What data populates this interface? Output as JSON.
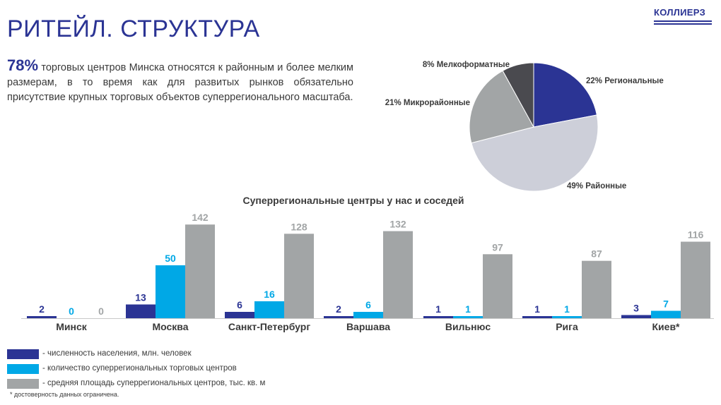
{
  "header": {
    "title": "РИТЕЙЛ. СТРУКТУРА",
    "logo_text": "КОЛЛИЕРЗ"
  },
  "intro": {
    "highlight": "78%",
    "text": " торговых центров Минска относятся к районным и более мелким размерам, в то время как для развитых рынков обязательно присутствие крупных торговых объектов суперрегионального масштаба."
  },
  "colors": {
    "navy": "#2b3494",
    "cyan": "#00a8e6",
    "gray": "#a2a5a6",
    "dark": "#4a4a4f",
    "light": "#cdcfd9"
  },
  "chart_data": [
    {
      "type": "pie",
      "slices": [
        {
          "label": "22% Региональные",
          "value": 22,
          "color": "#2b3494"
        },
        {
          "label": "49% Районные",
          "value": 49,
          "color": "#cdcfd9"
        },
        {
          "label": "21% Микрорайонные",
          "value": 21,
          "color": "#a2a5a6"
        },
        {
          "label": "8% Мелкоформатные",
          "value": 8,
          "color": "#4a4a4f"
        }
      ]
    },
    {
      "type": "bar",
      "title": "Суперрегиональные центры у нас и соседей",
      "categories": [
        "Минск",
        "Москва",
        "Санкт-Петербург",
        "Варшава",
        "Вильнюс",
        "Рига",
        "Киев*"
      ],
      "series": [
        {
          "name": "- численность населения, млн. человек",
          "values": [
            2,
            13,
            6,
            2,
            1,
            1,
            3
          ],
          "color": "#2b3494",
          "label_color": "#2b3494"
        },
        {
          "name": "- количество суперрегиональных торговых центров",
          "values": [
            0,
            50,
            16,
            6,
            1,
            1,
            7
          ],
          "color": "#00a8e6",
          "label_color": "#00a8e6"
        },
        {
          "name": "- средняя площадь суперрегиональных центров, тыс. кв. м",
          "values": [
            0,
            142,
            128,
            132,
            97,
            87,
            116
          ],
          "color": "#a2a5a6",
          "label_color": "#a2a5a6"
        }
      ],
      "legend": "bottom-left"
    }
  ],
  "footnote": "* достоверность данных ограничена."
}
